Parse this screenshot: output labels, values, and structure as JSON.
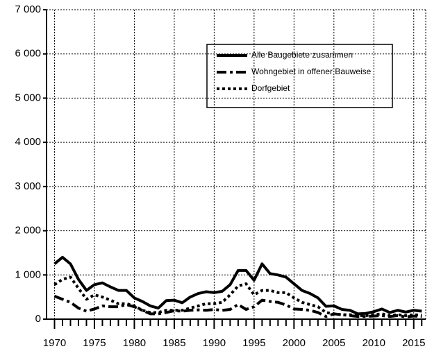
{
  "chart_data": {
    "type": "line",
    "x": [
      1970,
      1971,
      1972,
      1973,
      1974,
      1975,
      1976,
      1977,
      1978,
      1979,
      1980,
      1981,
      1982,
      1983,
      1984,
      1985,
      1986,
      1987,
      1988,
      1989,
      1990,
      1991,
      1992,
      1993,
      1994,
      1995,
      1996,
      1997,
      1998,
      1999,
      2000,
      2001,
      2002,
      2003,
      2004,
      2005,
      2006,
      2007,
      2008,
      2009,
      2010,
      2011,
      2012,
      2013,
      2014,
      2015,
      2016
    ],
    "series": [
      {
        "name": "Alle Baugebiete zusammen",
        "color": "#000000",
        "style": "solid",
        "values": [
          1250,
          1400,
          1250,
          900,
          650,
          780,
          820,
          730,
          650,
          650,
          480,
          400,
          300,
          250,
          420,
          430,
          370,
          500,
          580,
          620,
          600,
          630,
          780,
          1100,
          1100,
          880,
          1250,
          1030,
          1000,
          950,
          800,
          650,
          580,
          480,
          290,
          300,
          220,
          200,
          120,
          130,
          170,
          230,
          150,
          200,
          160,
          200,
          180
        ]
      },
      {
        "name": "Wohngebiet in offener Bauweise",
        "color": "#000000",
        "style": "dashdot",
        "values": [
          520,
          450,
          380,
          250,
          180,
          230,
          300,
          280,
          280,
          330,
          280,
          200,
          120,
          120,
          150,
          190,
          180,
          200,
          210,
          200,
          220,
          200,
          220,
          330,
          220,
          280,
          430,
          400,
          380,
          320,
          230,
          220,
          200,
          150,
          60,
          120,
          100,
          80,
          60,
          60,
          70,
          80,
          60,
          80,
          50,
          70,
          60
        ]
      },
      {
        "name": "Dorfgebiet",
        "color": "#000000",
        "style": "dotted",
        "values": [
          780,
          900,
          950,
          700,
          450,
          550,
          500,
          430,
          350,
          350,
          300,
          200,
          150,
          150,
          200,
          200,
          200,
          250,
          300,
          350,
          350,
          380,
          550,
          750,
          800,
          550,
          650,
          650,
          600,
          600,
          480,
          380,
          330,
          280,
          150,
          120,
          100,
          100,
          80,
          80,
          100,
          120,
          80,
          100,
          80,
          100,
          90
        ]
      }
    ],
    "xlim": [
      1969,
      2016.5
    ],
    "xticks": [
      1970,
      1975,
      1980,
      1985,
      1990,
      1995,
      2000,
      2005,
      2010,
      2015
    ],
    "ylim": [
      0,
      7000
    ],
    "yticks": [
      0,
      {
        "value": 1000,
        "label": "1 000"
      },
      {
        "value": 2000,
        "label": "2 000"
      },
      {
        "value": 3000,
        "label": "3 000"
      },
      {
        "value": 4000,
        "label": "4 000"
      },
      {
        "value": 5000,
        "label": "5 000"
      },
      {
        "value": 6000,
        "label": "6 000"
      },
      {
        "value": 7000,
        "label": "7 000"
      }
    ],
    "grid": true
  }
}
